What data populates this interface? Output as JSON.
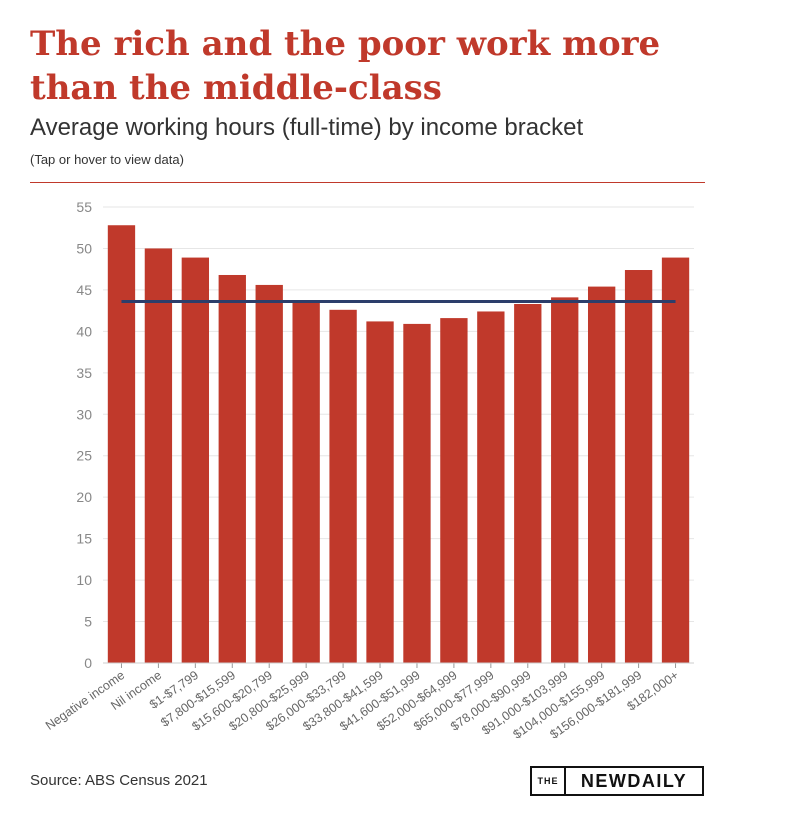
{
  "header": {
    "title": "The rich and the poor work more than the middle-class",
    "subtitle": "Average working hours (full-time) by income bracket",
    "note": "(Tap or hover to view data)"
  },
  "footer": {
    "source": "Source: ABS Census 2021",
    "logo_prefix": "THE",
    "logo_main": "NEWDAILY"
  },
  "colors": {
    "accent": "#c0392b",
    "bar": "#c0392b",
    "average_line": "#2c3e6b"
  },
  "chart_data": {
    "type": "bar",
    "title": "The rich and the poor work more than the middle-class",
    "subtitle": "Average working hours (full-time) by income bracket",
    "xlabel": "",
    "ylabel": "",
    "ylim": [
      0,
      55
    ],
    "yticks": [
      0,
      5,
      10,
      15,
      20,
      25,
      30,
      35,
      40,
      45,
      50,
      55
    ],
    "grid": true,
    "categories": [
      "Negative income",
      "Nil income",
      "$1-$7,799",
      "$7,800-$15,599",
      "$15,600-$20,799",
      "$20,800-$25,999",
      "$26,000-$33,799",
      "$33,800-$41,599",
      "$41,600-$51,999",
      "$52,000-$64,999",
      "$65,000-$77,999",
      "$78,000-$90,999",
      "$91,000-$103,999",
      "$104,000-$155,999",
      "$156,000-$181,999",
      "$182,000+"
    ],
    "values": [
      52.8,
      50.0,
      48.9,
      46.8,
      45.6,
      43.6,
      42.6,
      41.2,
      40.9,
      41.6,
      42.4,
      43.3,
      44.1,
      45.4,
      47.4,
      48.9
    ],
    "reference_line": {
      "value": 43.6
    }
  }
}
